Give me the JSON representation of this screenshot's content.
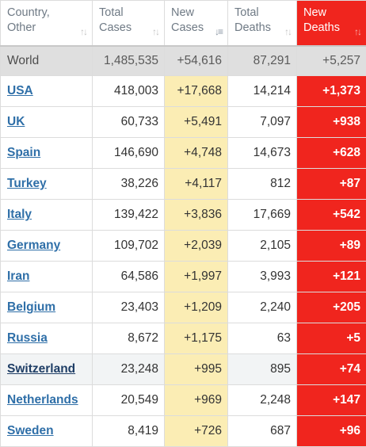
{
  "headers": [
    {
      "label": "Country,\nOther",
      "sort_icon": "sort-arrows-icon"
    },
    {
      "label": "Total\nCases",
      "sort_icon": "sort-arrows-icon"
    },
    {
      "label": "New\nCases",
      "sort_icon": "sort-descending-icon"
    },
    {
      "label": "Total\nDeaths",
      "sort_icon": "sort-arrows-icon"
    },
    {
      "label": "New\nDeaths",
      "sort_icon": "sort-arrows-icon"
    }
  ],
  "world": {
    "country": "World",
    "total_cases": "1,485,535",
    "new_cases": "+54,616",
    "total_deaths": "87,291",
    "new_deaths": "+5,257"
  },
  "rows": [
    {
      "country": "USA",
      "total_cases": "418,003",
      "new_cases": "+17,668",
      "total_deaths": "14,214",
      "new_deaths": "+1,373"
    },
    {
      "country": "UK",
      "total_cases": "60,733",
      "new_cases": "+5,491",
      "total_deaths": "7,097",
      "new_deaths": "+938"
    },
    {
      "country": "Spain",
      "total_cases": "146,690",
      "new_cases": "+4,748",
      "total_deaths": "14,673",
      "new_deaths": "+628"
    },
    {
      "country": "Turkey",
      "total_cases": "38,226",
      "new_cases": "+4,117",
      "total_deaths": "812",
      "new_deaths": "+87"
    },
    {
      "country": "Italy",
      "total_cases": "139,422",
      "new_cases": "+3,836",
      "total_deaths": "17,669",
      "new_deaths": "+542"
    },
    {
      "country": "Germany",
      "total_cases": "109,702",
      "new_cases": "+2,039",
      "total_deaths": "2,105",
      "new_deaths": "+89"
    },
    {
      "country": "Iran",
      "total_cases": "64,586",
      "new_cases": "+1,997",
      "total_deaths": "3,993",
      "new_deaths": "+121"
    },
    {
      "country": "Belgium",
      "total_cases": "23,403",
      "new_cases": "+1,209",
      "total_deaths": "2,240",
      "new_deaths": "+205"
    },
    {
      "country": "Russia",
      "total_cases": "8,672",
      "new_cases": "+1,175",
      "total_deaths": "63",
      "new_deaths": "+5"
    },
    {
      "country": "Switzerland",
      "total_cases": "23,248",
      "new_cases": "+995",
      "total_deaths": "895",
      "new_deaths": "+74"
    },
    {
      "country": "Netherlands",
      "total_cases": "20,549",
      "new_cases": "+969",
      "total_deaths": "2,248",
      "new_deaths": "+147"
    },
    {
      "country": "Sweden",
      "total_cases": "8,419",
      "new_cases": "+726",
      "total_deaths": "687",
      "new_deaths": "+96"
    }
  ],
  "highlighted_row": "Switzerland",
  "colors": {
    "new_cases_bg": "#fbedb4",
    "new_deaths_bg": "#f0251e",
    "world_row_bg": "#dfdfdf",
    "link": "#2f6fa8"
  }
}
